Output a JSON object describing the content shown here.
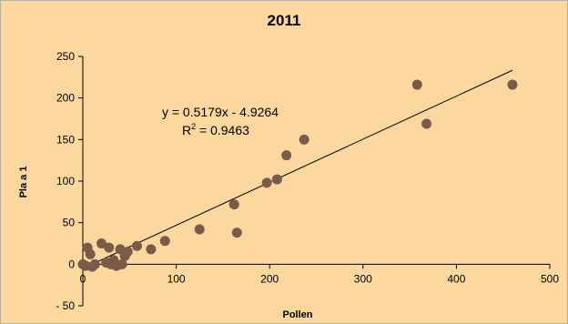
{
  "chart_data": {
    "type": "scatter",
    "title": "2011",
    "xlabel": "Pollen",
    "ylabel": "Pla a 1",
    "xlim": [
      0,
      500
    ],
    "ylim": [
      -50,
      250
    ],
    "xticks": [
      "0",
      "100",
      "200",
      "300",
      "400",
      "500"
    ],
    "yticks": [
      "- 50",
      "0",
      "50",
      "100",
      "150",
      "200",
      "250"
    ],
    "points": [
      {
        "x": 0,
        "y": 0
      },
      {
        "x": 3,
        "y": -2
      },
      {
        "x": 5,
        "y": 20
      },
      {
        "x": 8,
        "y": 12
      },
      {
        "x": 10,
        "y": -3
      },
      {
        "x": 13,
        "y": 0
      },
      {
        "x": 20,
        "y": 25
      },
      {
        "x": 25,
        "y": 2
      },
      {
        "x": 28,
        "y": 20
      },
      {
        "x": 30,
        "y": 0
      },
      {
        "x": 33,
        "y": 5
      },
      {
        "x": 36,
        "y": -2
      },
      {
        "x": 40,
        "y": 18
      },
      {
        "x": 42,
        "y": 0
      },
      {
        "x": 45,
        "y": 10
      },
      {
        "x": 48,
        "y": 15
      },
      {
        "x": 58,
        "y": 22
      },
      {
        "x": 73,
        "y": 18
      },
      {
        "x": 88,
        "y": 28
      },
      {
        "x": 125,
        "y": 42
      },
      {
        "x": 162,
        "y": 72
      },
      {
        "x": 165,
        "y": 38
      },
      {
        "x": 197,
        "y": 98
      },
      {
        "x": 208,
        "y": 102
      },
      {
        "x": 218,
        "y": 131
      },
      {
        "x": 237,
        "y": 150
      },
      {
        "x": 358,
        "y": 216
      },
      {
        "x": 368,
        "y": 169
      },
      {
        "x": 460,
        "y": 216
      }
    ],
    "trendline": {
      "slope": 0.5179,
      "intercept": -4.9264,
      "x_range": [
        0,
        460
      ]
    },
    "equation_text": "y = 0.5179x - 4.9264",
    "r2_prefix": "R",
    "r2_sup": "2",
    "r2_value": " = 0.9463",
    "grid": false,
    "colors": {
      "background": "#fcd79e",
      "marker": "#7a5a48",
      "line": "#000000"
    }
  }
}
